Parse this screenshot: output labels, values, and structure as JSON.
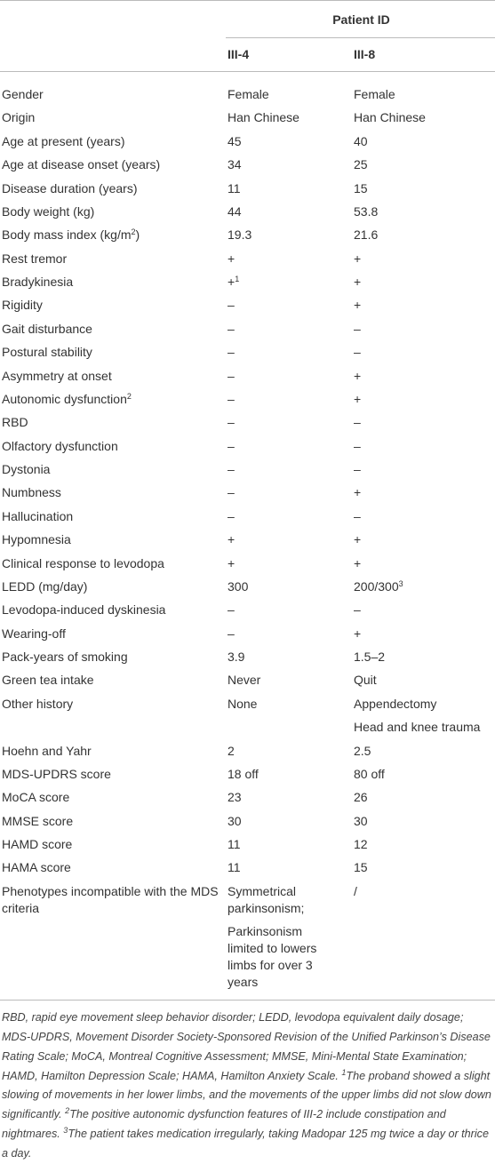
{
  "table": {
    "group_header": "Patient ID",
    "columns": [
      "III-4",
      "III-8"
    ],
    "rows": [
      [
        "Gender",
        "Female",
        "Female"
      ],
      [
        "Origin",
        "Han Chinese",
        "Han Chinese"
      ],
      [
        "Age at present (years)",
        "45",
        "40"
      ],
      [
        "Age at disease onset (years)",
        "34",
        "25"
      ],
      [
        "Disease duration (years)",
        "11",
        "15"
      ],
      [
        "Body weight (kg)",
        "44",
        "53.8"
      ],
      [
        {
          "text": "Body mass index (kg/m",
          "sup": "2",
          "tail": ")"
        },
        "19.3",
        "21.6"
      ],
      [
        "Rest tremor",
        "+",
        "+"
      ],
      [
        "Bradykinesia",
        {
          "text": "+",
          "sup": "1"
        },
        "+"
      ],
      [
        "Rigidity",
        "–",
        "+"
      ],
      [
        "Gait disturbance",
        "–",
        "–"
      ],
      [
        "Postural stability",
        "–",
        "–"
      ],
      [
        "Asymmetry at onset",
        "–",
        "+"
      ],
      [
        {
          "text": "Autonomic dysfunction",
          "sup": "2"
        },
        "–",
        "+"
      ],
      [
        "RBD",
        "–",
        "–"
      ],
      [
        "Olfactory dysfunction",
        "–",
        "–"
      ],
      [
        "Dystonia",
        "–",
        "–"
      ],
      [
        "Numbness",
        "–",
        "+"
      ],
      [
        "Hallucination",
        "–",
        "–"
      ],
      [
        "Hypomnesia",
        "+",
        "+"
      ],
      [
        "Clinical response to levodopa",
        "+",
        "+"
      ],
      [
        "LEDD (mg/day)",
        "300",
        {
          "text": "200/300",
          "sup": "3"
        }
      ],
      [
        "Levodopa-induced dyskinesia",
        "–",
        "–"
      ],
      [
        "Wearing-off",
        "–",
        "+"
      ],
      [
        "Pack-years of smoking",
        "3.9",
        "1.5–2"
      ],
      [
        "Green tea intake",
        "Never",
        "Quit"
      ],
      [
        "Other history",
        "None",
        [
          "Appendectomy",
          "Head and knee trauma"
        ]
      ],
      [
        "Hoehn and Yahr",
        "2",
        "2.5"
      ],
      [
        "MDS-UPDRS score",
        "18 off",
        "80 off"
      ],
      [
        "MoCA score",
        "23",
        "26"
      ],
      [
        "MMSE score",
        "30",
        "30"
      ],
      [
        "HAMD score",
        "11",
        "12"
      ],
      [
        "HAMA score",
        "11",
        "15"
      ],
      [
        "Phenotypes incompatible with the MDS criteria",
        [
          "Symmetrical parkinsonism;",
          "Parkinsonism limited to lowers limbs for over 3 years"
        ],
        "/"
      ]
    ]
  },
  "footnote": [
    {
      "text": "RBD, rapid eye movement sleep behavior disorder; LEDD, levodopa equivalent daily dosage; MDS-UPDRS, Movement Disorder Society-Sponsored Revision of the Unified Parkinson’s Disease Rating Scale; MoCA, Montreal Cognitive Assessment; MMSE, Mini-Mental State Examination; HAMD, Hamilton Depression Scale; HAMA, Hamilton Anxiety Scale. "
    },
    {
      "sup": "1"
    },
    {
      "text": "The proband showed a slight slowing of movements in her lower limbs, and the movements of the upper limbs did not slow down significantly. "
    },
    {
      "sup": "2"
    },
    {
      "text": "The positive autonomic dysfunction features of III-2 include constipation and nightmares. "
    },
    {
      "sup": "3"
    },
    {
      "text": "The patient takes medication irregularly, taking Madopar 125 mg twice a day or thrice a day."
    }
  ]
}
